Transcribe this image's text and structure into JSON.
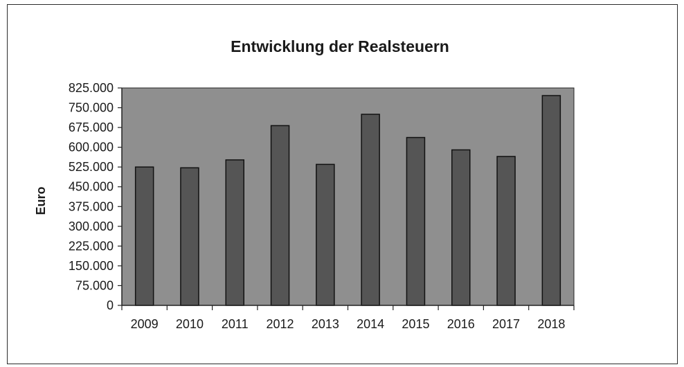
{
  "chart_data": {
    "type": "bar",
    "title": "Entwicklung der Realsteuern",
    "xlabel": "",
    "ylabel": "Euro",
    "categories": [
      "2009",
      "2010",
      "2011",
      "2012",
      "2013",
      "2014",
      "2015",
      "2016",
      "2017",
      "2018"
    ],
    "values": [
      525000,
      522000,
      552000,
      682000,
      535000,
      725000,
      637000,
      590000,
      565000,
      796000
    ],
    "ylim": [
      0,
      825000
    ],
    "yticks": [
      0,
      75000,
      150000,
      225000,
      300000,
      375000,
      450000,
      525000,
      600000,
      675000,
      750000,
      825000
    ],
    "ytick_labels": [
      "0",
      "75.000",
      "150.000",
      "225.000",
      "300.000",
      "375.000",
      "450.000",
      "525.000",
      "600.000",
      "675.000",
      "750.000",
      "825.000"
    ],
    "grid": false,
    "legend": "none",
    "colors": {
      "plot_background": "#8f8f8f",
      "bar_fill": "#555555",
      "bar_stroke": "#111111",
      "axis": "#222222"
    }
  }
}
